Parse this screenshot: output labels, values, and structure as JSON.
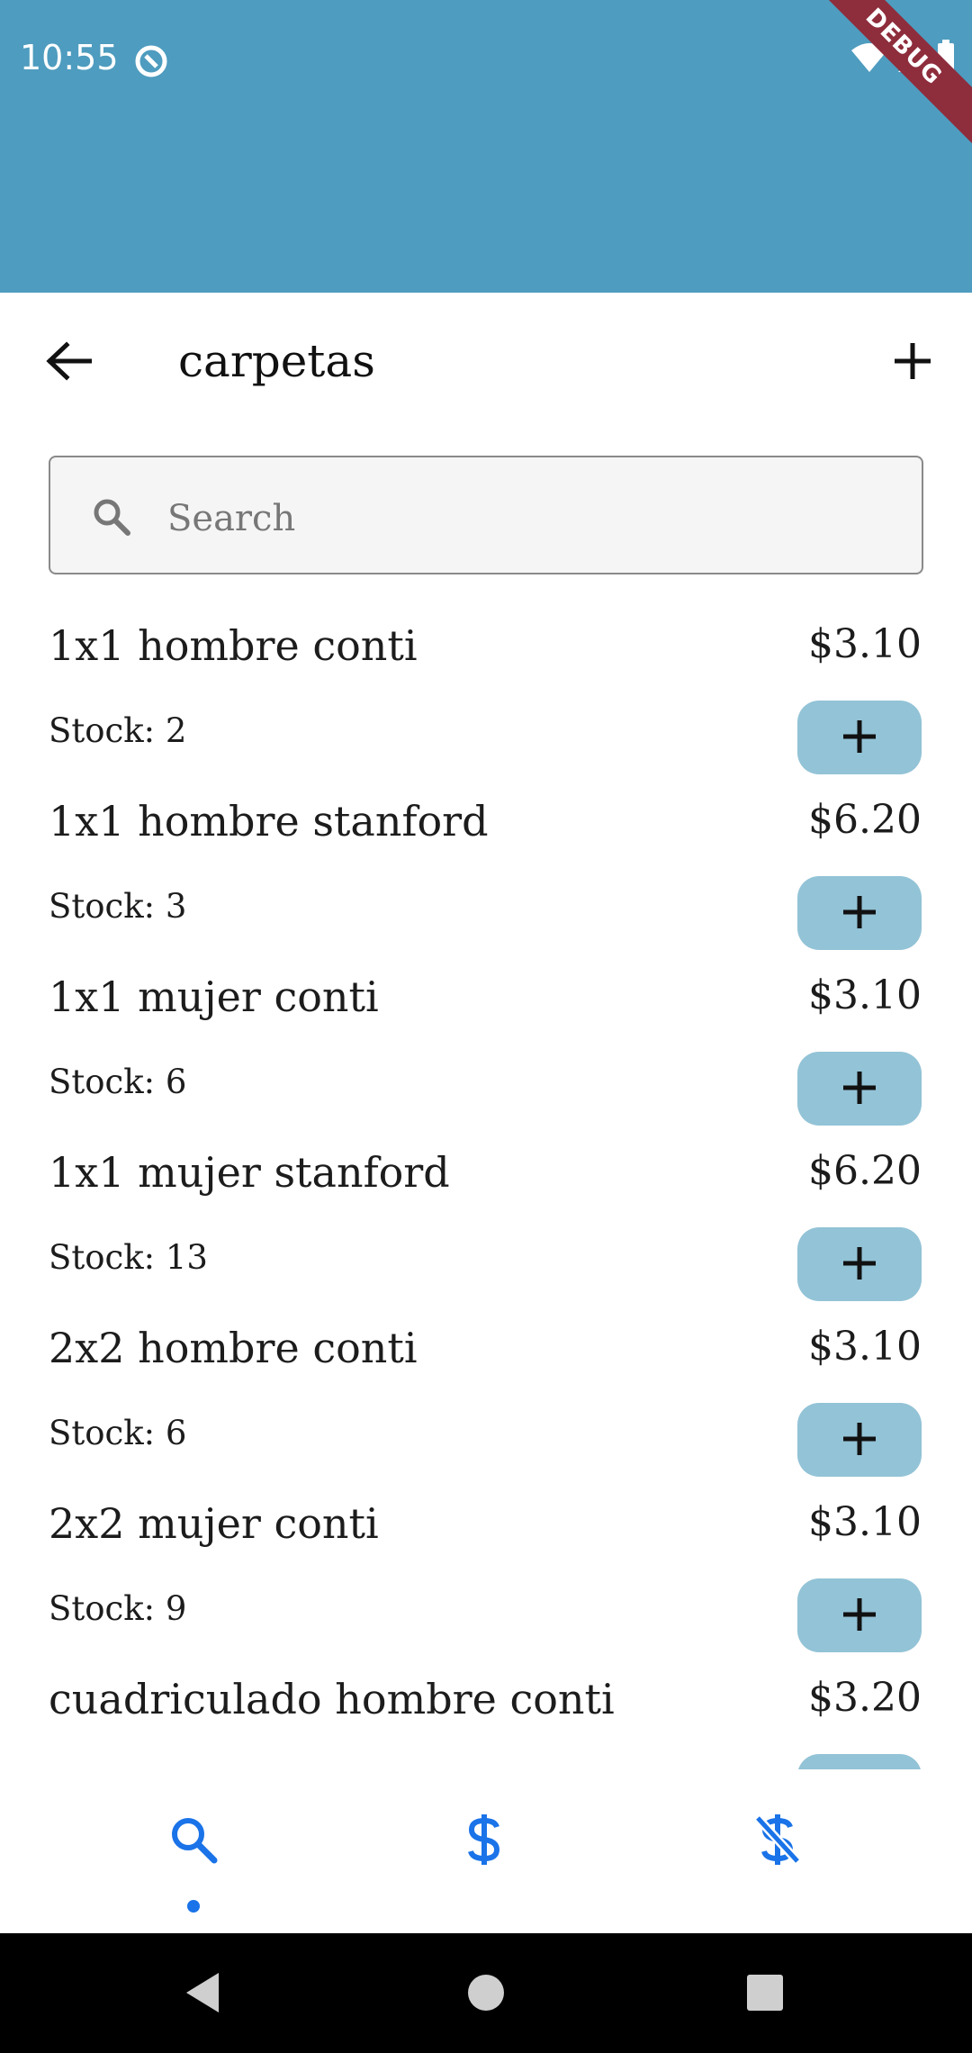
{
  "status_bar": {
    "time": "10:55",
    "debug_label": "DEBUG"
  },
  "app_bar": {
    "title": "carpetas",
    "back_icon": "arrow-left-icon",
    "add_icon": "plus-icon"
  },
  "search": {
    "placeholder": "Search",
    "value": ""
  },
  "products": [
    {
      "name": "1x1 hombre conti",
      "price": "$3.10",
      "stock": "Stock: 2"
    },
    {
      "name": "1x1 hombre stanford",
      "price": "$6.20",
      "stock": "Stock: 3"
    },
    {
      "name": "1x1 mujer conti",
      "price": "$3.10",
      "stock": "Stock: 6"
    },
    {
      "name": "1x1 mujer stanford",
      "price": "$6.20",
      "stock": "Stock: 13"
    },
    {
      "name": "2x2 hombre conti",
      "price": "$3.10",
      "stock": "Stock: 6"
    },
    {
      "name": "2x2 mujer conti",
      "price": "$3.10",
      "stock": "Stock: 9"
    },
    {
      "name": "cuadriculado hombre conti",
      "price": "$3.20",
      "stock": ""
    }
  ],
  "bottom_nav": {
    "items": [
      {
        "icon": "search-icon",
        "active": true
      },
      {
        "icon": "dollar-icon",
        "active": false
      },
      {
        "icon": "dollar-off-icon",
        "active": false
      }
    ]
  },
  "colors": {
    "header_bg": "#4e9cbf",
    "add_button_bg": "#93c3d6",
    "nav_accent": "#1a73e8",
    "debug_banner": "#8e2d3c"
  }
}
